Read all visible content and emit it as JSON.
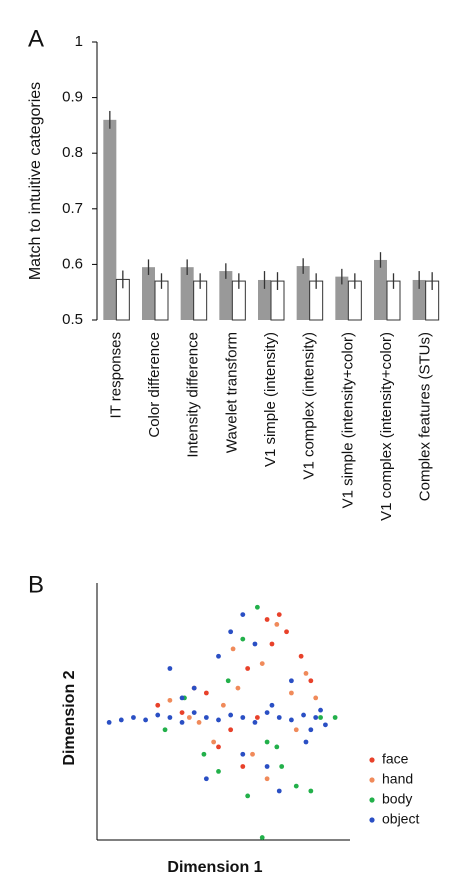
{
  "chart_data": [
    {
      "type": "bar",
      "label": "A",
      "y_label": "Match to intuitive categories",
      "categories": [
        "IT responses",
        "Color difference",
        "Intensity difference",
        "Wavelet transform",
        "V1 simple (intensity)",
        "V1 complex (intensity)",
        "V1 simple (intensity+color)",
        "V1 complex (intensity+color)",
        "Complex features (STUs)"
      ],
      "series": [
        {
          "color": "#999999",
          "values": [
            0.86,
            0.595,
            0.595,
            0.588,
            0.572,
            0.597,
            0.578,
            0.608,
            0.572
          ],
          "errors": [
            0.016,
            0.014,
            0.014,
            0.014,
            0.016,
            0.014,
            0.014,
            0.014,
            0.016
          ]
        },
        {
          "color": "#ffffff",
          "values": [
            0.573,
            0.57,
            0.57,
            0.57,
            0.57,
            0.57,
            0.57,
            0.57,
            0.57
          ],
          "errors": [
            0.016,
            0.014,
            0.014,
            0.014,
            0.016,
            0.014,
            0.014,
            0.014,
            0.016
          ]
        }
      ],
      "ylim": [
        0.5,
        1
      ],
      "yticks": [
        0.5,
        0.6,
        0.7,
        0.8,
        0.9,
        1
      ]
    },
    {
      "type": "scatter",
      "label": "B",
      "x_label": "Dimension 1",
      "y_label": "Dimension 2",
      "xlim": [
        0,
        100
      ],
      "ylim": [
        0,
        100
      ],
      "series": [
        {
          "name": "face",
          "color": "#e8412a",
          "x": [
            25,
            35,
            45,
            55,
            62,
            70,
            72,
            78,
            84,
            88,
            60,
            50,
            40,
            66,
            75
          ],
          "values": [
            55,
            52,
            60,
            45,
            70,
            90,
            80,
            85,
            75,
            65,
            30,
            38,
            62,
            50,
            92
          ]
        },
        {
          "name": "hand",
          "color": "#f08a5a",
          "x": [
            30,
            42,
            52,
            58,
            68,
            74,
            80,
            86,
            90,
            48,
            64,
            38,
            82,
            70,
            56
          ],
          "values": [
            57,
            48,
            55,
            62,
            72,
            88,
            60,
            68,
            58,
            40,
            35,
            50,
            45,
            25,
            78
          ]
        },
        {
          "name": "body",
          "color": "#22b04a",
          "x": [
            28,
            36,
            44,
            54,
            60,
            66,
            70,
            76,
            82,
            88,
            92,
            50,
            62,
            74,
            68,
            98
          ],
          "values": [
            45,
            58,
            35,
            65,
            82,
            95,
            40,
            30,
            22,
            20,
            50,
            28,
            18,
            38,
            1,
            50
          ]
        },
        {
          "name": "object",
          "color": "#2a4fc4",
          "x": [
            5,
            10,
            15,
            20,
            25,
            30,
            35,
            40,
            45,
            50,
            55,
            60,
            65,
            70,
            75,
            80,
            85,
            90,
            92,
            94,
            30,
            40,
            50,
            60,
            70,
            80,
            86,
            55,
            45,
            65,
            75,
            35,
            88,
            60,
            72
          ],
          "values": [
            48,
            49,
            50,
            49,
            51,
            50,
            48,
            52,
            50,
            49,
            51,
            50,
            48,
            52,
            50,
            49,
            51,
            50,
            53,
            47,
            70,
            62,
            75,
            35,
            30,
            65,
            40,
            85,
            25,
            80,
            20,
            58,
            45,
            92,
            55
          ]
        }
      ]
    }
  ]
}
